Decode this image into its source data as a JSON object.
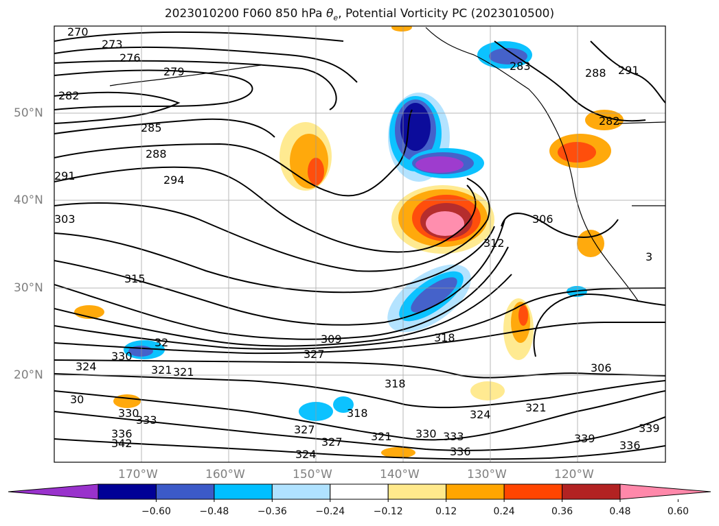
{
  "title_prefix": "2023010200 F060 850 hPa ",
  "title_theta": "θ",
  "title_sub": "e",
  "title_suffix": ", Potential Vorticity PC (2023010500)",
  "lat_labels": [
    "50°N",
    "40°N",
    "30°N",
    "20°N"
  ],
  "lon_labels": [
    "170°W",
    "160°W",
    "150°W",
    "140°W",
    "130°W",
    "120°W"
  ],
  "contour_labels": [
    "270",
    "273",
    "276",
    "279",
    "282",
    "285",
    "288",
    "291",
    "294",
    "303",
    "315",
    "309",
    "306",
    "312",
    "318",
    "321",
    "324",
    "327",
    "330",
    "333",
    "336",
    "339",
    "342",
    "330",
    "321",
    "282",
    "283",
    "288",
    "291",
    "318",
    "321",
    "324",
    "327",
    "330",
    "333",
    "336",
    "339",
    "336",
    "306",
    "321",
    "318",
    "324",
    "327",
    "32",
    "30",
    "3"
  ],
  "colorbar": {
    "ticks": [
      "−0.60",
      "−0.48",
      "−0.36",
      "−0.24",
      "−0.12",
      "0.12",
      "0.24",
      "0.36",
      "0.48",
      "0.60"
    ],
    "colors": [
      "#9932cc",
      "#000096",
      "#3c5ac8",
      "#00bfff",
      "#b0e2ff",
      "#ffffff",
      "#ffe98c",
      "#ffa500",
      "#ff4500",
      "#b22222",
      "#ff88aa"
    ]
  }
}
